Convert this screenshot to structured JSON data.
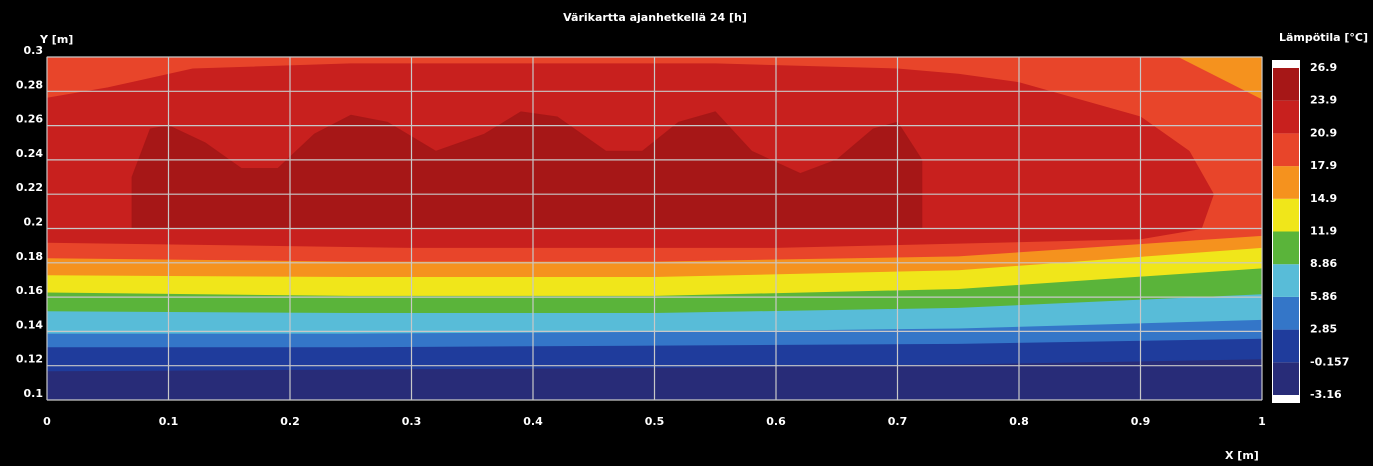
{
  "chart_data": {
    "type": "contour",
    "title": "Värikartta ajanhetkellä 24 [h]",
    "x_label": "X [m]",
    "y_label": "Y [m]",
    "colorbar_label": "Lämpötila [°C]",
    "xlim": [
      0,
      1
    ],
    "ylim": [
      0.1,
      0.3
    ],
    "xticks": [
      0,
      0.1,
      0.2,
      0.3,
      0.4,
      0.5,
      0.6,
      0.7,
      0.8,
      0.9,
      1
    ],
    "yticks": [
      0.1,
      0.12,
      0.14,
      0.16,
      0.18,
      0.2,
      0.22,
      0.24,
      0.26,
      0.28,
      0.3
    ],
    "grid": true,
    "levels": [
      -3.16,
      -0.157,
      2.85,
      5.86,
      8.86,
      11.9,
      14.9,
      17.9,
      20.9,
      23.9,
      26.9
    ],
    "colors": [
      "#282c78",
      "#1f3c9c",
      "#3476c8",
      "#58bcd8",
      "#5ab43a",
      "#f0e61a",
      "#f5921e",
      "#e8452a",
      "#c8201e",
      "#a61717"
    ],
    "regions": [
      {
        "x": [
          0,
          1,
          1,
          0
        ],
        "y": [
          0.1,
          0.1,
          0.3,
          0.3
        ]
      },
      {
        "x": [
          0,
          0.25,
          0.5,
          0.75,
          1,
          1,
          0
        ],
        "y": [
          0.117,
          0.118,
          0.119,
          0.121,
          0.124,
          0.3,
          0.3
        ]
      },
      {
        "x": [
          0,
          0.25,
          0.5,
          0.75,
          1,
          1,
          0
        ],
        "y": [
          0.131,
          0.131,
          0.132,
          0.133,
          0.136,
          0.3,
          0.3
        ]
      },
      {
        "x": [
          0,
          0.25,
          0.5,
          0.75,
          1,
          1,
          0
        ],
        "y": [
          0.139,
          0.139,
          0.14,
          0.142,
          0.147,
          0.3,
          0.3
        ]
      },
      {
        "x": [
          0,
          0.25,
          0.5,
          0.75,
          1,
          1,
          0
        ],
        "y": [
          0.152,
          0.151,
          0.151,
          0.154,
          0.162,
          0.3,
          0.3
        ]
      },
      {
        "x": [
          0,
          0.25,
          0.5,
          0.75,
          1,
          1,
          0
        ],
        "y": [
          0.163,
          0.161,
          0.161,
          0.165,
          0.177,
          0.3,
          0.3
        ]
      },
      {
        "x": [
          0,
          0.25,
          0.5,
          0.75,
          1,
          1,
          0
        ],
        "y": [
          0.173,
          0.172,
          0.172,
          0.176,
          0.189,
          0.3,
          0.3
        ]
      },
      {
        "x": [
          0,
          0.25,
          0.5,
          0.75,
          1,
          1,
          0.93,
          0
        ],
        "y": [
          0.183,
          0.181,
          0.181,
          0.184,
          0.196,
          0.275,
          0.3,
          0.3
        ]
      },
      {
        "x": [
          0,
          0.3,
          0.6,
          0.9,
          0.95,
          0.96,
          0.94,
          0.9,
          0.85,
          0.8,
          0.75,
          0.7,
          0.55,
          0.4,
          0.25,
          0.12,
          0.05,
          0
        ],
        "y": [
          0.192,
          0.189,
          0.189,
          0.194,
          0.2,
          0.22,
          0.245,
          0.265,
          0.275,
          0.285,
          0.29,
          0.293,
          0.296,
          0.296,
          0.296,
          0.293,
          0.282,
          0.276
        ]
      },
      {
        "x": [
          0.07,
          0.72,
          0.72,
          0.7,
          0.68,
          0.65,
          0.62,
          0.58,
          0.55,
          0.52,
          0.49,
          0.46,
          0.42,
          0.39,
          0.36,
          0.32,
          0.28,
          0.25,
          0.22,
          0.19,
          0.16,
          0.13,
          0.1,
          0.085,
          0.07
        ],
        "y": [
          0.2,
          0.2,
          0.24,
          0.262,
          0.258,
          0.24,
          0.232,
          0.245,
          0.268,
          0.262,
          0.245,
          0.245,
          0.265,
          0.268,
          0.255,
          0.245,
          0.262,
          0.266,
          0.255,
          0.235,
          0.235,
          0.25,
          0.26,
          0.258,
          0.23
        ]
      }
    ]
  }
}
